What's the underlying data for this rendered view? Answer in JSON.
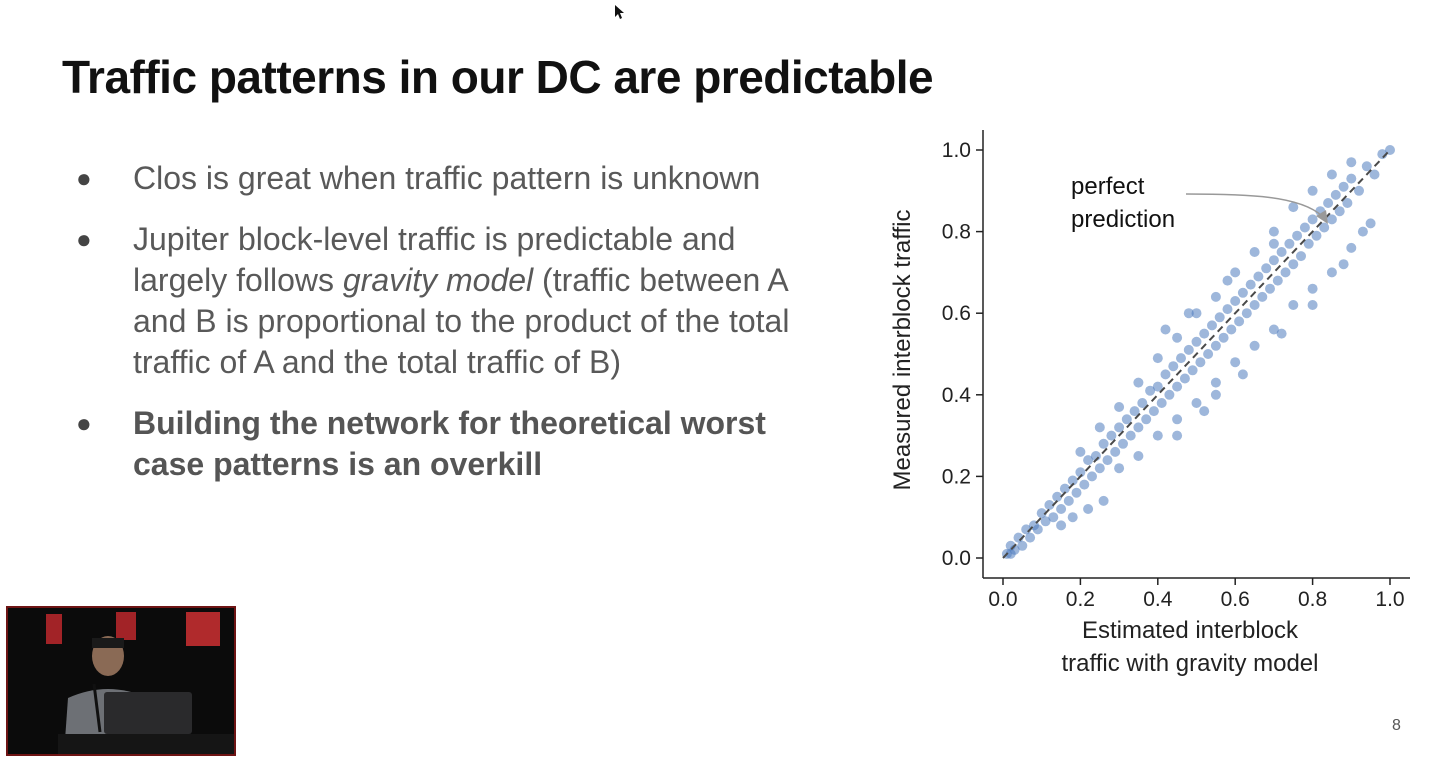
{
  "slide": {
    "title": "Traffic patterns in our DC are predictable",
    "page_number": "8",
    "bullets": [
      {
        "text": "Clos is great when traffic pattern is unknown"
      },
      {
        "text_before": "Jupiter block-level traffic is predictable and largely follows ",
        "emphasis": "gravity model",
        "text_after": " (traffic between A and B is proportional to the product of the total traffic of A and the total traffic of B)"
      },
      {
        "text": "Building the network for theoretical worst case patterns is an overkill"
      }
    ]
  },
  "colors": {
    "points": "#4f7bbd",
    "reference_line": "#4a4a4a",
    "video_border": "#6e1414"
  },
  "chart_data": {
    "type": "scatter",
    "title": "",
    "xlabel": "Estimated interblock traffic with gravity model",
    "ylabel": "Measured interblock traffic",
    "xlim": [
      0.0,
      1.0
    ],
    "ylim": [
      0.0,
      1.0
    ],
    "xticks": [
      "0.0",
      "0.2",
      "0.4",
      "0.6",
      "0.8",
      "1.0"
    ],
    "yticks": [
      "0.0",
      "0.2",
      "0.4",
      "0.6",
      "0.8",
      "1.0"
    ],
    "grid": false,
    "reference_line": {
      "label": "perfect prediction",
      "from": [
        0.0,
        0.0
      ],
      "to": [
        1.0,
        1.0
      ],
      "style": "dashed"
    },
    "annotation": {
      "text": "perfect prediction",
      "points_to": [
        0.84,
        0.84
      ]
    },
    "series": [
      {
        "points": [
          [
            0.01,
            0.01
          ],
          [
            0.02,
            0.01
          ],
          [
            0.02,
            0.03
          ],
          [
            0.03,
            0.02
          ],
          [
            0.04,
            0.05
          ],
          [
            0.05,
            0.03
          ],
          [
            0.06,
            0.07
          ],
          [
            0.07,
            0.05
          ],
          [
            0.08,
            0.08
          ],
          [
            0.09,
            0.07
          ],
          [
            0.1,
            0.11
          ],
          [
            0.11,
            0.09
          ],
          [
            0.12,
            0.13
          ],
          [
            0.13,
            0.1
          ],
          [
            0.14,
            0.15
          ],
          [
            0.15,
            0.12
          ],
          [
            0.16,
            0.17
          ],
          [
            0.17,
            0.14
          ],
          [
            0.18,
            0.19
          ],
          [
            0.19,
            0.16
          ],
          [
            0.2,
            0.21
          ],
          [
            0.21,
            0.18
          ],
          [
            0.22,
            0.24
          ],
          [
            0.23,
            0.2
          ],
          [
            0.24,
            0.25
          ],
          [
            0.25,
            0.22
          ],
          [
            0.26,
            0.28
          ],
          [
            0.27,
            0.24
          ],
          [
            0.28,
            0.3
          ],
          [
            0.29,
            0.26
          ],
          [
            0.3,
            0.32
          ],
          [
            0.31,
            0.28
          ],
          [
            0.32,
            0.34
          ],
          [
            0.33,
            0.3
          ],
          [
            0.34,
            0.36
          ],
          [
            0.35,
            0.32
          ],
          [
            0.36,
            0.38
          ],
          [
            0.37,
            0.34
          ],
          [
            0.38,
            0.41
          ],
          [
            0.39,
            0.36
          ],
          [
            0.4,
            0.42
          ],
          [
            0.41,
            0.38
          ],
          [
            0.42,
            0.45
          ],
          [
            0.43,
            0.4
          ],
          [
            0.44,
            0.47
          ],
          [
            0.45,
            0.42
          ],
          [
            0.46,
            0.49
          ],
          [
            0.47,
            0.44
          ],
          [
            0.48,
            0.51
          ],
          [
            0.49,
            0.46
          ],
          [
            0.5,
            0.53
          ],
          [
            0.51,
            0.48
          ],
          [
            0.52,
            0.55
          ],
          [
            0.53,
            0.5
          ],
          [
            0.54,
            0.57
          ],
          [
            0.55,
            0.52
          ],
          [
            0.56,
            0.59
          ],
          [
            0.57,
            0.54
          ],
          [
            0.58,
            0.61
          ],
          [
            0.59,
            0.56
          ],
          [
            0.6,
            0.63
          ],
          [
            0.61,
            0.58
          ],
          [
            0.62,
            0.65
          ],
          [
            0.63,
            0.6
          ],
          [
            0.64,
            0.67
          ],
          [
            0.65,
            0.62
          ],
          [
            0.66,
            0.69
          ],
          [
            0.67,
            0.64
          ],
          [
            0.68,
            0.71
          ],
          [
            0.69,
            0.66
          ],
          [
            0.7,
            0.73
          ],
          [
            0.71,
            0.68
          ],
          [
            0.72,
            0.75
          ],
          [
            0.73,
            0.7
          ],
          [
            0.74,
            0.77
          ],
          [
            0.75,
            0.72
          ],
          [
            0.76,
            0.79
          ],
          [
            0.77,
            0.74
          ],
          [
            0.78,
            0.81
          ],
          [
            0.79,
            0.77
          ],
          [
            0.8,
            0.83
          ],
          [
            0.81,
            0.79
          ],
          [
            0.82,
            0.85
          ],
          [
            0.83,
            0.81
          ],
          [
            0.84,
            0.87
          ],
          [
            0.85,
            0.83
          ],
          [
            0.86,
            0.89
          ],
          [
            0.87,
            0.85
          ],
          [
            0.88,
            0.91
          ],
          [
            0.89,
            0.87
          ],
          [
            0.9,
            0.93
          ],
          [
            0.92,
            0.9
          ],
          [
            0.94,
            0.96
          ],
          [
            0.96,
            0.94
          ],
          [
            0.98,
            0.99
          ],
          [
            1.0,
            1.0
          ],
          [
            0.3,
            0.22
          ],
          [
            0.35,
            0.25
          ],
          [
            0.4,
            0.3
          ],
          [
            0.45,
            0.34
          ],
          [
            0.5,
            0.38
          ],
          [
            0.55,
            0.43
          ],
          [
            0.6,
            0.48
          ],
          [
            0.65,
            0.52
          ],
          [
            0.7,
            0.56
          ],
          [
            0.75,
            0.62
          ],
          [
            0.8,
            0.66
          ],
          [
            0.85,
            0.7
          ],
          [
            0.9,
            0.76
          ],
          [
            0.95,
            0.82
          ],
          [
            0.2,
            0.26
          ],
          [
            0.25,
            0.32
          ],
          [
            0.3,
            0.37
          ],
          [
            0.35,
            0.43
          ],
          [
            0.4,
            0.49
          ],
          [
            0.45,
            0.54
          ],
          [
            0.5,
            0.6
          ],
          [
            0.55,
            0.64
          ],
          [
            0.6,
            0.7
          ],
          [
            0.65,
            0.75
          ],
          [
            0.7,
            0.8
          ],
          [
            0.75,
            0.86
          ],
          [
            0.8,
            0.9
          ],
          [
            0.85,
            0.94
          ],
          [
            0.9,
            0.97
          ],
          [
            0.42,
            0.56
          ],
          [
            0.48,
            0.6
          ],
          [
            0.58,
            0.68
          ],
          [
            0.7,
            0.77
          ],
          [
            0.55,
            0.4
          ],
          [
            0.62,
            0.45
          ],
          [
            0.72,
            0.55
          ],
          [
            0.8,
            0.62
          ],
          [
            0.15,
            0.08
          ],
          [
            0.18,
            0.1
          ],
          [
            0.22,
            0.12
          ],
          [
            0.26,
            0.14
          ],
          [
            0.45,
            0.3
          ],
          [
            0.52,
            0.36
          ],
          [
            0.88,
            0.72
          ],
          [
            0.93,
            0.8
          ]
        ]
      }
    ]
  }
}
